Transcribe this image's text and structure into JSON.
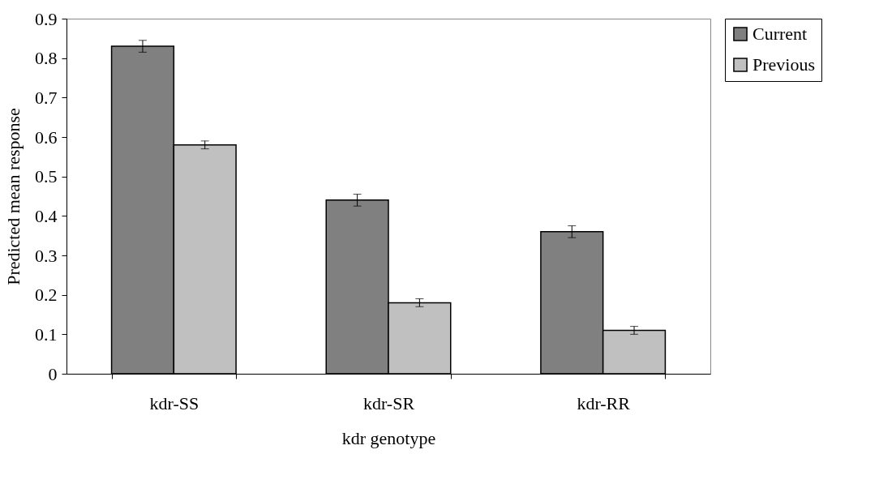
{
  "chart_data": {
    "type": "bar",
    "xlabel": "kdr genotype",
    "ylabel": "Predicted mean response",
    "categories": [
      "kdr-SS",
      "kdr-SR",
      "kdr-RR"
    ],
    "series": [
      {
        "name": "Current",
        "color": "#808080",
        "values": [
          0.83,
          0.44,
          0.36
        ],
        "errors": [
          0.015,
          0.015,
          0.015
        ]
      },
      {
        "name": "Previous",
        "color": "#c0c0c0",
        "values": [
          0.58,
          0.18,
          0.11
        ],
        "errors": [
          0.01,
          0.01,
          0.01
        ]
      }
    ],
    "ylim": [
      0,
      0.9
    ],
    "yticks": [
      0,
      0.1,
      0.2,
      0.3,
      0.4,
      0.5,
      0.6,
      0.7,
      0.8,
      0.9
    ],
    "grid": false,
    "legend": "right"
  }
}
